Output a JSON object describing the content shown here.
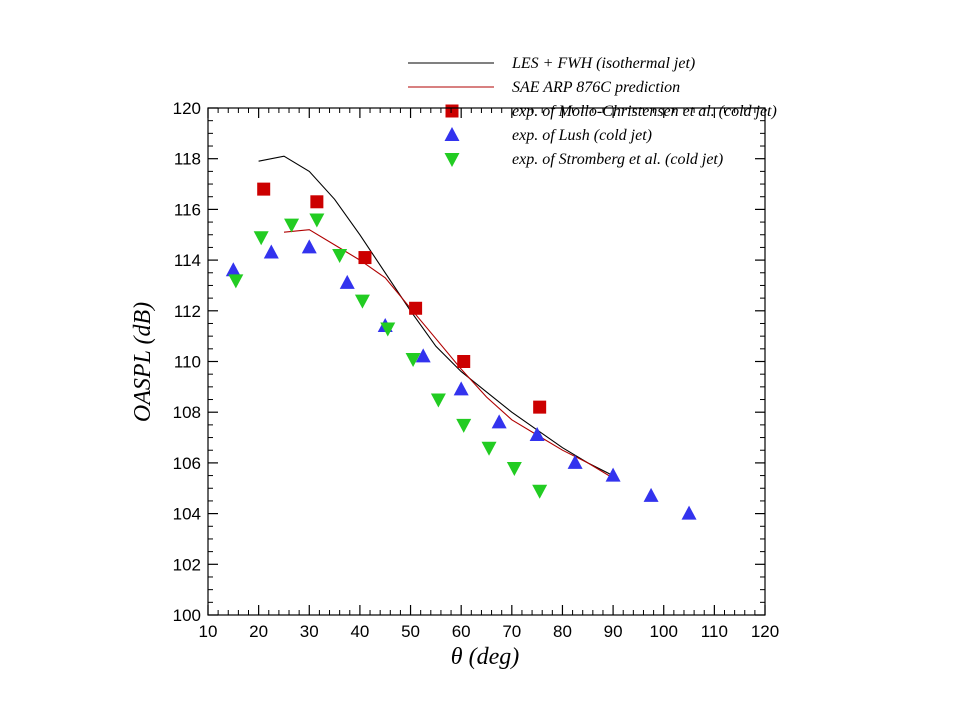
{
  "chart_data": {
    "type": "scatter",
    "title": "",
    "xlabel": "θ (deg)",
    "ylabel": "OASPL (dB)",
    "xlim": [
      10,
      120
    ],
    "ylim": [
      100,
      120
    ],
    "xticks": [
      "10",
      "20",
      "30",
      "40",
      "50",
      "60",
      "70",
      "80",
      "90",
      "100",
      "110",
      "120"
    ],
    "yticks": [
      "100",
      "102",
      "104",
      "106",
      "108",
      "110",
      "112",
      "114",
      "116",
      "118",
      "120"
    ],
    "grid": false,
    "legend_position": "top-right",
    "series": [
      {
        "name": "LES + FWH (isothermal jet)",
        "kind": "line",
        "color": "#000000",
        "x": [
          20,
          25,
          30,
          35,
          40,
          45,
          50,
          55,
          60,
          65,
          70,
          75,
          80,
          85,
          90
        ],
        "y": [
          117.9,
          118.1,
          117.5,
          116.4,
          115.0,
          113.5,
          112.0,
          110.6,
          109.6,
          108.8,
          108.0,
          107.3,
          106.6,
          106.0,
          105.5
        ]
      },
      {
        "name": "SAE ARP 876C prediction",
        "kind": "line",
        "color": "#b00000",
        "x": [
          25,
          30,
          35,
          40,
          45,
          50,
          55,
          60,
          65,
          70,
          75,
          80,
          85,
          90
        ],
        "y": [
          115.1,
          115.2,
          114.6,
          114.0,
          113.3,
          112.1,
          110.9,
          109.7,
          108.6,
          107.7,
          107.1,
          106.5,
          106.0,
          105.4
        ]
      },
      {
        "name": "exp. of Mollo-Christensen et al. (cold jet)",
        "kind": "square",
        "color": "#cc0000",
        "x": [
          21,
          31.5,
          41,
          51,
          60.5,
          75.5
        ],
        "y": [
          116.8,
          116.3,
          114.1,
          112.1,
          110.0,
          108.2
        ]
      },
      {
        "name": "exp. of Lush (cold jet)",
        "kind": "triangle-up",
        "color": "#3333ee",
        "x": [
          15,
          22.5,
          30,
          37.5,
          45,
          52.5,
          60,
          67.5,
          75,
          82.5,
          90,
          97.5,
          105
        ],
        "y": [
          113.6,
          114.3,
          114.5,
          113.1,
          111.4,
          110.2,
          108.9,
          107.6,
          107.1,
          106.0,
          105.5,
          104.7,
          104.0
        ]
      },
      {
        "name": "exp. of Stromberg et al. (cold jet)",
        "kind": "triangle-down",
        "color": "#22cc22",
        "x": [
          15.5,
          20.5,
          26.5,
          31.5,
          36,
          40.5,
          45.5,
          50.5,
          55.5,
          60.5,
          65.5,
          70.5,
          75.5
        ],
        "y": [
          113.2,
          114.9,
          115.4,
          115.6,
          114.2,
          112.4,
          111.3,
          110.1,
          108.5,
          107.5,
          106.6,
          105.8,
          104.9
        ]
      }
    ]
  }
}
